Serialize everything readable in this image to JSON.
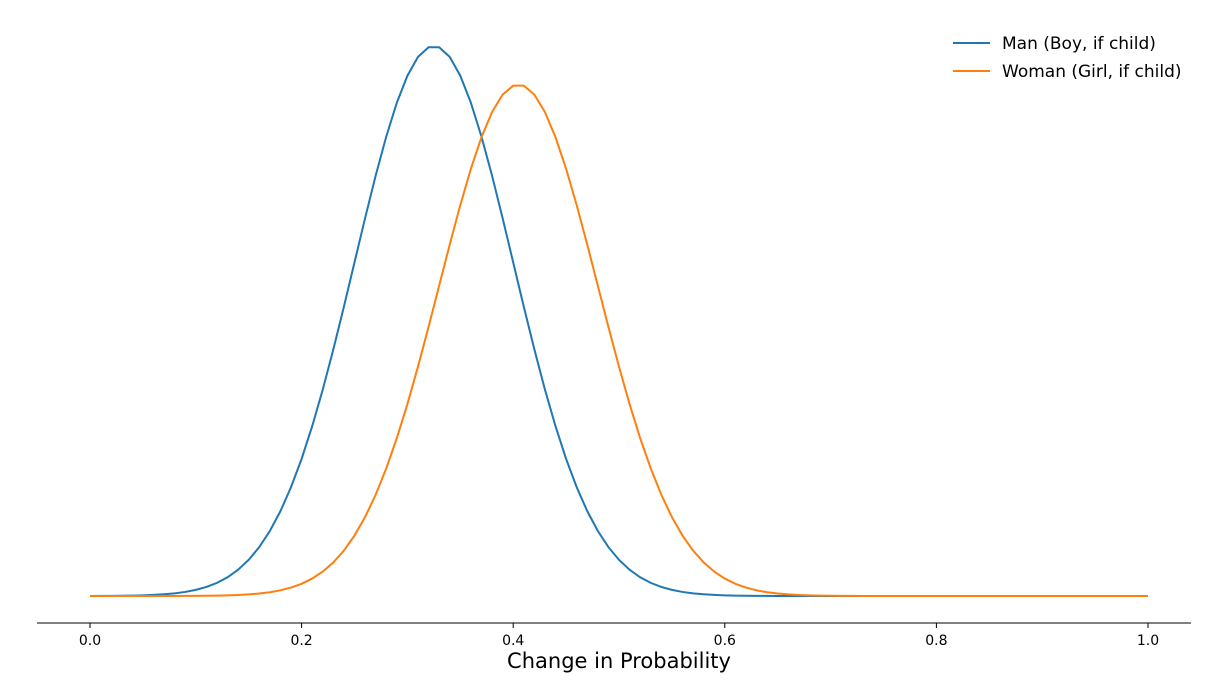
{
  "chart_data": {
    "type": "line",
    "title": "",
    "xlabel": "Change in Probability",
    "ylabel": "",
    "xlim": [
      0.0,
      1.0
    ],
    "ylim": [
      0,
      1
    ],
    "grid": false,
    "legend_position": "top-right",
    "x_ticks": [
      "0.0",
      "0.2",
      "0.4",
      "0.6",
      "0.8",
      "1.0"
    ],
    "series": [
      {
        "name": "Man (Boy, if child)",
        "color": "#1f77b4",
        "mu": 0.325,
        "sigma": 0.075,
        "peak": 1.0
      },
      {
        "name": "Woman (Girl, if child)",
        "color": "#ff7f0e",
        "mu": 0.405,
        "sigma": 0.075,
        "peak": 0.93
      }
    ]
  }
}
